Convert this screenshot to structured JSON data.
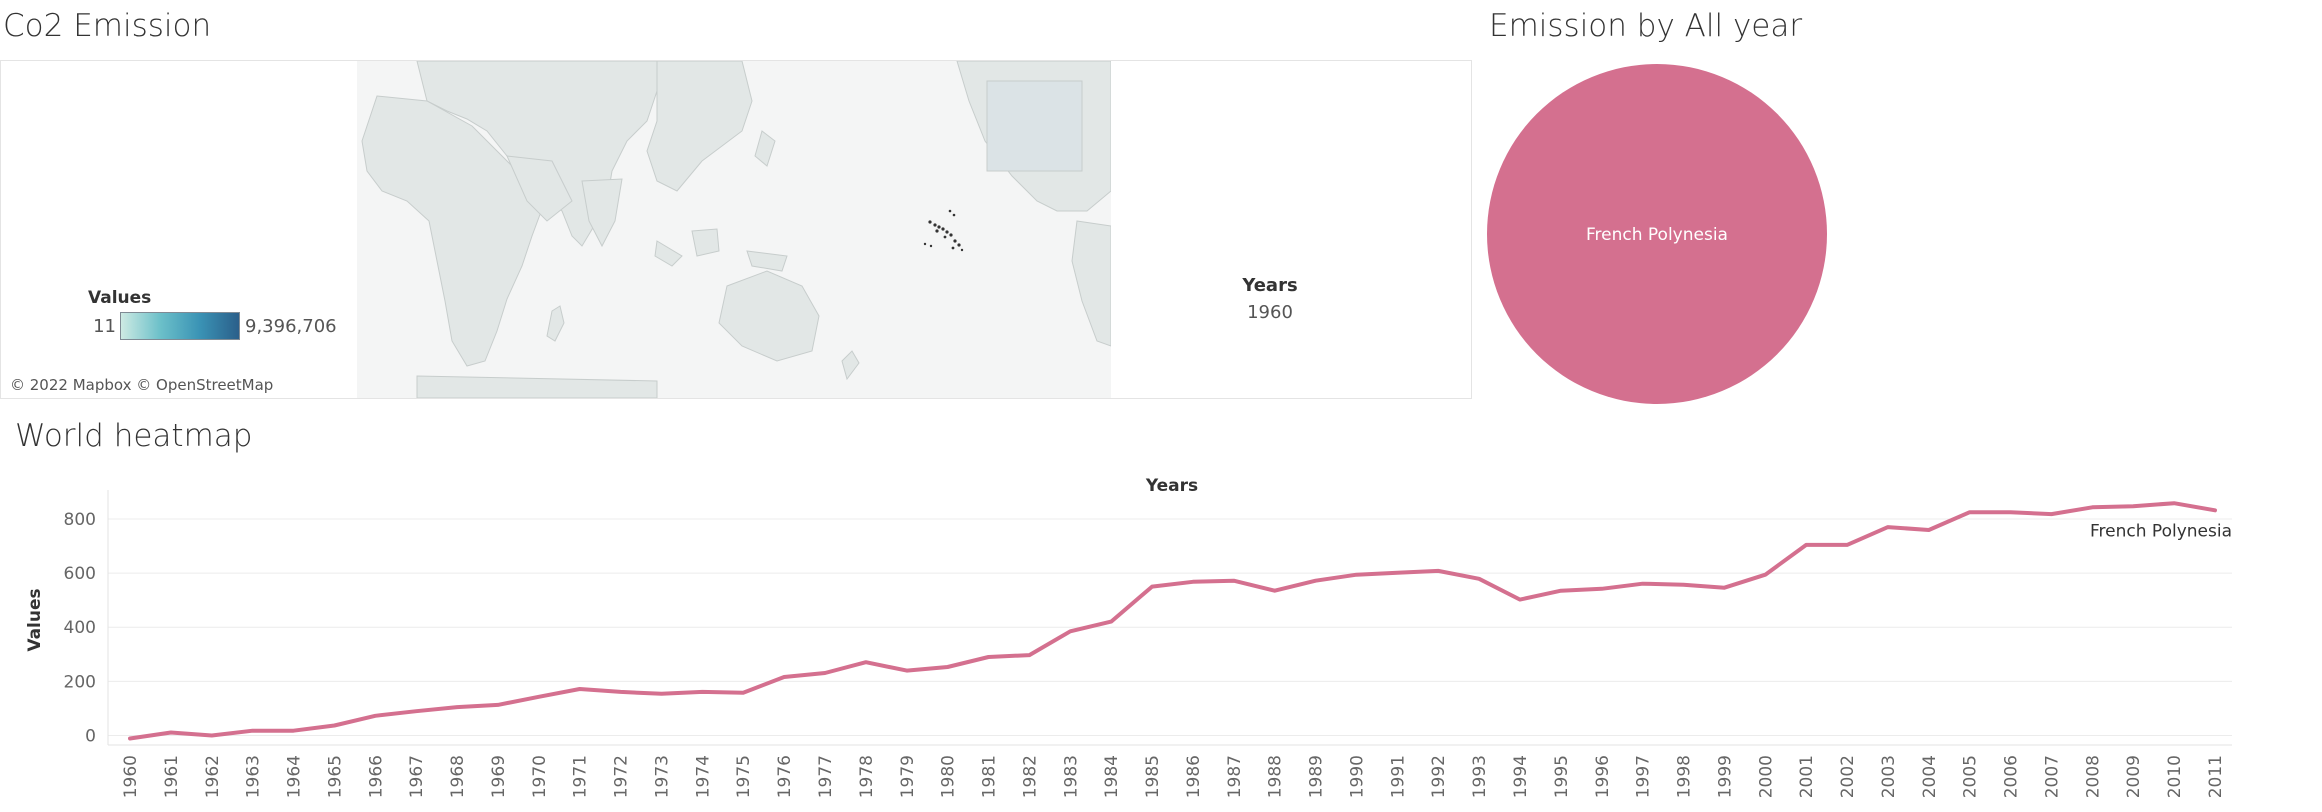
{
  "map": {
    "title": "Co2 Emission",
    "legend": {
      "title": "Values",
      "min": "11",
      "max": "9,396,706"
    },
    "attribution": "© 2022 Mapbox © OpenStreetMap",
    "filter": {
      "label": "Years",
      "value": "1960"
    },
    "colors": {
      "land": "#e2e7e6",
      "border": "#c7cdcc",
      "highlight": "#333333"
    }
  },
  "pie": {
    "title": "Emission  by All year",
    "color": "#d4708f",
    "label_color": "#ffffff"
  },
  "line": {
    "title": "World heatmap"
  },
  "chart_data": [
    {
      "type": "pie",
      "title": "Emission  by All year",
      "slices": [
        {
          "label": "French Polynesia",
          "share": 1.0,
          "color": "#d4708f"
        }
      ]
    },
    {
      "type": "line",
      "title": "World heatmap",
      "xlabel": "Years",
      "ylabel": "Values",
      "ylim": [
        -35,
        870
      ],
      "yticks": [
        0,
        200,
        400,
        600,
        800
      ],
      "grid": true,
      "color": "#d4708f",
      "series_label": "French Polynesia",
      "x": [
        "1960",
        "1961",
        "1962",
        "1963",
        "1964",
        "1965",
        "1966",
        "1967",
        "1968",
        "1969",
        "1970",
        "1971",
        "1972",
        "1973",
        "1974",
        "1975",
        "1976",
        "1977",
        "1978",
        "1979",
        "1980",
        "1981",
        "1982",
        "1983",
        "1984",
        "1985",
        "1986",
        "1987",
        "1988",
        "1989",
        "1990",
        "1991",
        "1992",
        "1993",
        "1994",
        "1995",
        "1996",
        "1997",
        "1998",
        "1999",
        "2000",
        "2001",
        "2002",
        "2003",
        "2004",
        "2005",
        "2006",
        "2007",
        "2008",
        "2009",
        "2010",
        "2011"
      ],
      "series": [
        {
          "name": "French Polynesia",
          "values": [
            -11,
            11,
            0,
            18,
            18,
            37,
            73,
            90,
            105,
            113,
            143,
            172,
            161,
            154,
            161,
            158,
            216,
            231,
            271,
            240,
            253,
            290,
            297,
            385,
            421,
            550,
            568,
            572,
            535,
            572,
            594,
            601,
            608,
            579,
            502,
            535,
            542,
            561,
            557,
            546,
            594,
            704,
            704,
            770,
            759,
            825,
            825,
            818,
            843,
            847,
            858,
            832
          ]
        }
      ]
    }
  ]
}
